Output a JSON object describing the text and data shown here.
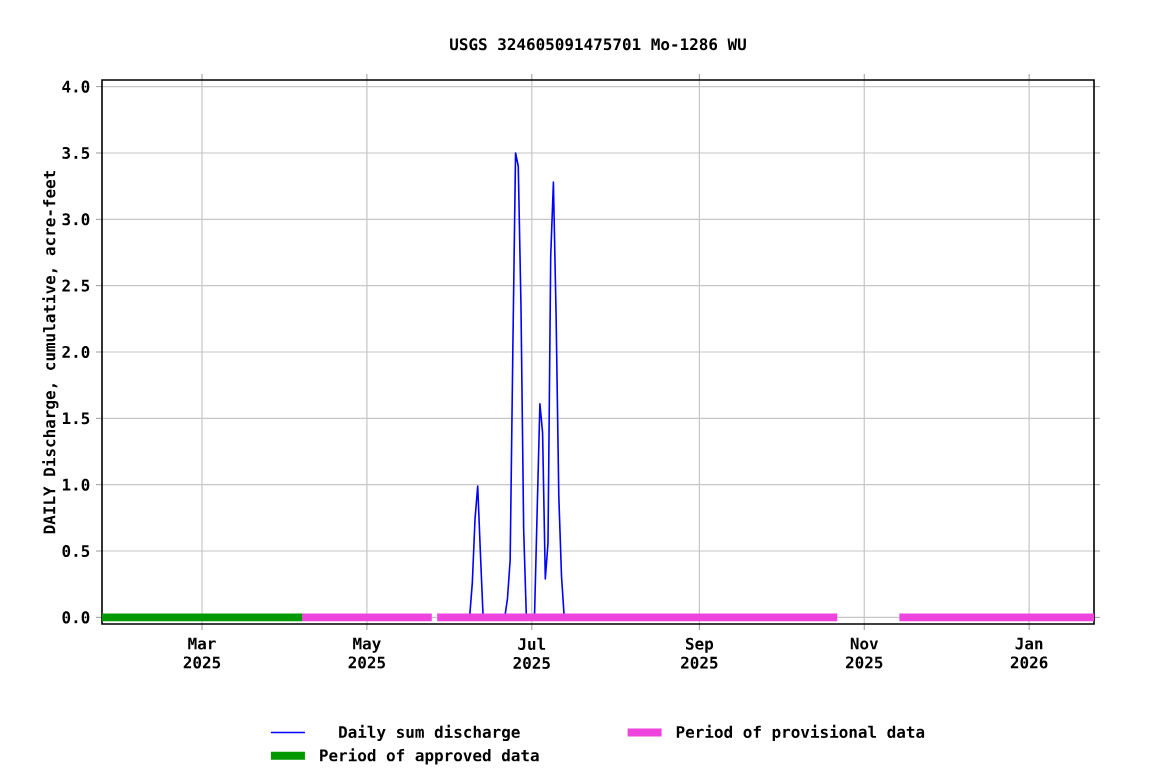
{
  "chart_data": {
    "type": "line",
    "title": "USGS 324605091475701 Mo-1286 WU",
    "ylabel": "DAILY Discharge, cumulative, acre-feet",
    "xlim": [
      "2025-01-23",
      "2026-01-25"
    ],
    "xticks": [
      {
        "value": "2025-03-01",
        "label": "Mar 2025"
      },
      {
        "value": "2025-05-01",
        "label": "May 2025"
      },
      {
        "value": "2025-07-01",
        "label": "Jul 2025"
      },
      {
        "value": "2025-09-01",
        "label": "Sep 2025"
      },
      {
        "value": "2025-11-01",
        "label": "Nov 2025"
      },
      {
        "value": "2026-01-01",
        "label": "Jan 2026"
      }
    ],
    "ylim": [
      -0.05,
      4.05
    ],
    "yticks": [
      {
        "value": 0,
        "label": "0.0"
      },
      {
        "value": 0.5,
        "label": "0.5"
      },
      {
        "value": 1,
        "label": "1.0"
      },
      {
        "value": 1.5,
        "label": "1.5"
      },
      {
        "value": 2,
        "label": "2.0"
      },
      {
        "value": 2.5,
        "label": "2.5"
      },
      {
        "value": 3,
        "label": "3.0"
      },
      {
        "value": 3.5,
        "label": "3.5"
      },
      {
        "value": 4,
        "label": "4.0"
      }
    ],
    "grid": true,
    "legend": "bottom",
    "series": [
      {
        "name": "Daily sum discharge",
        "color": "#0000ff",
        "x": [
          "2025-06-08",
          "2025-06-09",
          "2025-06-10",
          "2025-06-11",
          "2025-06-12",
          "2025-06-13",
          "2025-06-21",
          "2025-06-22",
          "2025-06-23",
          "2025-06-24",
          "2025-06-25",
          "2025-06-26",
          "2025-06-27",
          "2025-06-28",
          "2025-06-29",
          "2025-07-02",
          "2025-07-03",
          "2025-07-04",
          "2025-07-05",
          "2025-07-06",
          "2025-07-07",
          "2025-07-08",
          "2025-07-09",
          "2025-07-10",
          "2025-07-11",
          "2025-07-12",
          "2025-07-13"
        ],
        "values": [
          0,
          0.26,
          0.74,
          0.99,
          0.48,
          0,
          0,
          0.14,
          0.43,
          2.03,
          3.5,
          3.4,
          2.35,
          0.66,
          0,
          0,
          0.81,
          1.61,
          1.39,
          0.29,
          0.56,
          2.72,
          3.28,
          2.27,
          0.91,
          0.31,
          0
        ]
      },
      {
        "name": "Period of provisional data",
        "color": "#ee44dd",
        "x": [
          "2025-04-07",
          "2025-05-25",
          "2025-05-26",
          "2025-05-27",
          "2025-10-22",
          "2025-11-01",
          "2025-11-14",
          "2026-01-25"
        ],
        "values": [
          0,
          0,
          null,
          0,
          0,
          null,
          0,
          0
        ]
      },
      {
        "name": "Period of approved data",
        "color": "#009900",
        "x": [
          "2025-01-23",
          "2025-04-07"
        ],
        "values": [
          0,
          0
        ]
      }
    ]
  }
}
